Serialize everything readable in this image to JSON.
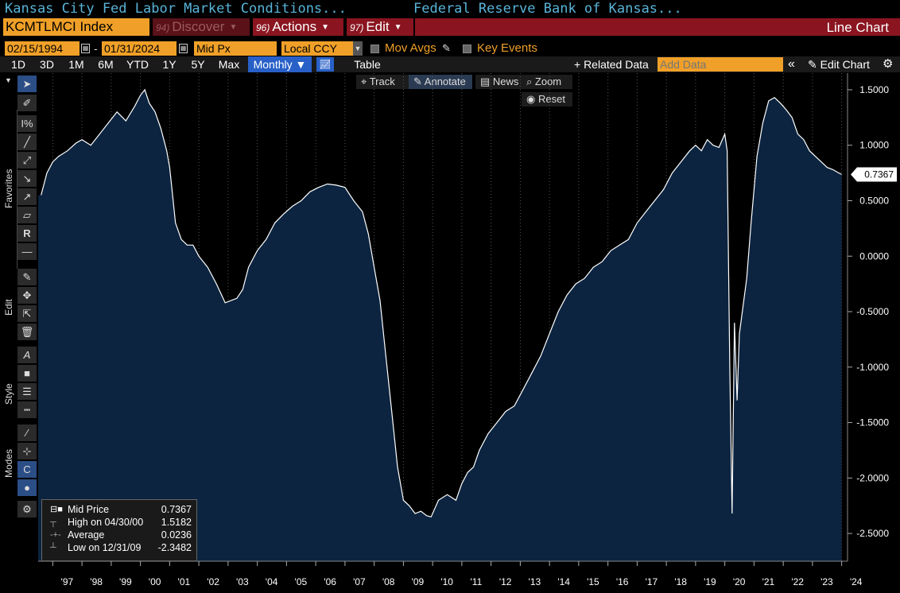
{
  "title_bar": {
    "security_name": "Kansas City Fed Labor Market Conditions...",
    "issuer_name": "Federal Reserve Bank of Kansas..."
  },
  "menu": {
    "ticker": "KCMTLMCI Index",
    "discover": {
      "num": "94)",
      "label": "Discover"
    },
    "actions": {
      "num": "96)",
      "label": "Actions"
    },
    "edit": {
      "num": "97)",
      "label": "Edit"
    },
    "view_label": "Line Chart"
  },
  "controls": {
    "start_date": "02/15/1994",
    "date_sep": "-",
    "end_date": "01/31/2024",
    "field": "Mid Px",
    "currency": "Local CCY",
    "mov_avgs": "Mov Avgs",
    "key_events": "Key Events"
  },
  "toolbar": {
    "ranges": [
      "1D",
      "3D",
      "1M",
      "6M",
      "YTD",
      "1Y",
      "5Y",
      "Max"
    ],
    "frequency": "Monthly ▼",
    "table": "Table",
    "related_data": "+ Related Data",
    "add_data_placeholder": "Add Data",
    "collapse": "«",
    "edit_chart": "Edit Chart"
  },
  "chart_buttons": {
    "track": "Track",
    "annotate": "Annotate",
    "news": "News",
    "zoom": "Zoom",
    "reset": "Reset"
  },
  "sidebar": {
    "sections": [
      "Favorites",
      "Edit",
      "Style",
      "Modes"
    ]
  },
  "legend": {
    "rows": [
      {
        "name": "Mid Price",
        "value": "0.7367"
      },
      {
        "name": "High on 04/30/00",
        "value": "1.5182"
      },
      {
        "name": "Average",
        "value": "0.0236"
      },
      {
        "name": "Low on 12/31/09",
        "value": "-2.3482"
      }
    ]
  },
  "colors": {
    "fill": "#0c2440",
    "line": "#ffffff",
    "accent_orange": "#f0a028",
    "menu_red": "#8a1520",
    "selected_blue": "#2860c8"
  },
  "chart_data": {
    "type": "area",
    "series_name": "Mid Price",
    "last_value_label": "0.7367",
    "ylim": [
      -2.75,
      1.65
    ],
    "xlim": [
      1996.5,
      2024.2
    ],
    "yticks": [
      1.5,
      1.0,
      0.5,
      0.0,
      -0.5,
      -1.0,
      -1.5,
      -2.0,
      -2.5
    ],
    "ytick_labels": [
      "1.5000",
      "1.0000",
      "0.5000",
      "0.0000",
      "-0.5000",
      "-1.0000",
      "-1.5000",
      "-2.0000",
      "-2.5000"
    ],
    "xtick_labels": [
      "'97",
      "'98",
      "'99",
      "'00",
      "'01",
      "'02",
      "'03",
      "'04",
      "'05",
      "'06",
      "'07",
      "'08",
      "'09",
      "'10",
      "'11",
      "'12",
      "'13",
      "'14",
      "'15",
      "'16",
      "'17",
      "'18",
      "'19",
      "'20",
      "'21",
      "'22",
      "'23",
      "'24"
    ],
    "grid": "vertical dotted",
    "x": [
      1996.6,
      1996.8,
      1997.0,
      1997.2,
      1997.5,
      1997.8,
      1998.0,
      1998.3,
      1998.6,
      1998.9,
      1999.2,
      1999.5,
      1999.8,
      2000.0,
      2000.15,
      2000.3,
      2000.5,
      2000.7,
      2000.9,
      2001.0,
      2001.2,
      2001.4,
      2001.6,
      2001.8,
      2002.0,
      2002.3,
      2002.6,
      2002.9,
      2003.1,
      2003.3,
      2003.5,
      2003.7,
      2004.0,
      2004.3,
      2004.6,
      2004.9,
      2005.2,
      2005.5,
      2005.8,
      2006.1,
      2006.4,
      2006.7,
      2007.0,
      2007.3,
      2007.6,
      2007.8,
      2008.0,
      2008.2,
      2008.4,
      2008.6,
      2008.8,
      2009.0,
      2009.2,
      2009.4,
      2009.6,
      2009.8,
      2009.95,
      2010.2,
      2010.5,
      2010.8,
      2011.0,
      2011.2,
      2011.4,
      2011.6,
      2011.9,
      2012.2,
      2012.5,
      2012.8,
      2013.1,
      2013.4,
      2013.7,
      2014.0,
      2014.3,
      2014.6,
      2014.9,
      2015.2,
      2015.5,
      2015.8,
      2016.1,
      2016.4,
      2016.7,
      2017.0,
      2017.3,
      2017.6,
      2017.9,
      2018.2,
      2018.5,
      2018.8,
      2019.0,
      2019.2,
      2019.4,
      2019.6,
      2019.8,
      2020.0,
      2020.08,
      2020.17,
      2020.25,
      2020.33,
      2020.42,
      2020.5,
      2020.6,
      2020.75,
      2020.9,
      2021.1,
      2021.3,
      2021.5,
      2021.7,
      2021.9,
      2022.1,
      2022.3,
      2022.5,
      2022.7,
      2022.9,
      2023.1,
      2023.3,
      2023.5,
      2023.7,
      2023.9,
      2024.0
    ],
    "y": [
      0.55,
      0.75,
      0.85,
      0.9,
      0.95,
      1.02,
      1.05,
      1.0,
      1.1,
      1.2,
      1.3,
      1.22,
      1.35,
      1.45,
      1.5,
      1.38,
      1.3,
      1.15,
      0.95,
      0.8,
      0.3,
      0.15,
      0.1,
      0.1,
      0.0,
      -0.1,
      -0.25,
      -0.42,
      -0.4,
      -0.38,
      -0.3,
      -0.1,
      0.05,
      0.15,
      0.3,
      0.38,
      0.45,
      0.5,
      0.58,
      0.62,
      0.65,
      0.64,
      0.62,
      0.5,
      0.4,
      0.2,
      -0.1,
      -0.4,
      -0.9,
      -1.4,
      -1.9,
      -2.2,
      -2.25,
      -2.32,
      -2.3,
      -2.34,
      -2.35,
      -2.2,
      -2.15,
      -2.2,
      -2.05,
      -1.95,
      -1.9,
      -1.75,
      -1.6,
      -1.5,
      -1.4,
      -1.35,
      -1.2,
      -1.05,
      -0.9,
      -0.7,
      -0.5,
      -0.35,
      -0.25,
      -0.2,
      -0.1,
      -0.05,
      0.05,
      0.1,
      0.15,
      0.3,
      0.4,
      0.5,
      0.6,
      0.75,
      0.85,
      0.95,
      1.0,
      0.95,
      1.05,
      1.0,
      0.98,
      1.1,
      0.95,
      -1.0,
      -2.32,
      -0.6,
      -1.3,
      -0.7,
      -0.5,
      -0.2,
      0.3,
      0.9,
      1.2,
      1.4,
      1.43,
      1.38,
      1.32,
      1.25,
      1.1,
      1.05,
      0.95,
      0.9,
      0.85,
      0.8,
      0.78,
      0.75,
      0.7367
    ]
  }
}
